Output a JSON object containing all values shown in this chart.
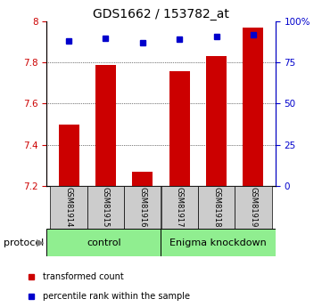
{
  "title": "GDS1662 / 153782_at",
  "samples": [
    "GSM81914",
    "GSM81915",
    "GSM81916",
    "GSM81917",
    "GSM81918",
    "GSM81919"
  ],
  "transformed_counts": [
    7.5,
    7.79,
    7.27,
    7.76,
    7.83,
    7.97
  ],
  "percentile_ranks": [
    88,
    90,
    87,
    89,
    91,
    92
  ],
  "ylim_left": [
    7.2,
    8.0
  ],
  "ylim_right": [
    0,
    100
  ],
  "yticks_left": [
    7.2,
    7.4,
    7.6,
    7.8,
    8.0
  ],
  "yticks_left_labels": [
    "7.2",
    "7.4",
    "7.6",
    "7.8",
    "8"
  ],
  "yticks_right": [
    0,
    25,
    50,
    75,
    100
  ],
  "yticks_right_labels": [
    "0",
    "25",
    "50",
    "75",
    "100%"
  ],
  "bar_color": "#CC0000",
  "dot_color": "#0000CC",
  "bar_width": 0.55,
  "control_label": "control",
  "knockdown_label": "Enigma knockdown",
  "protocol_label": "protocol",
  "legend_bar_label": "transformed count",
  "legend_dot_label": "percentile rank within the sample",
  "group_bg_light": "#90EE90",
  "sample_box_bg": "#cccccc",
  "title_fontsize": 10,
  "tick_fontsize": 7.5,
  "label_fontsize": 8,
  "legend_fontsize": 7
}
